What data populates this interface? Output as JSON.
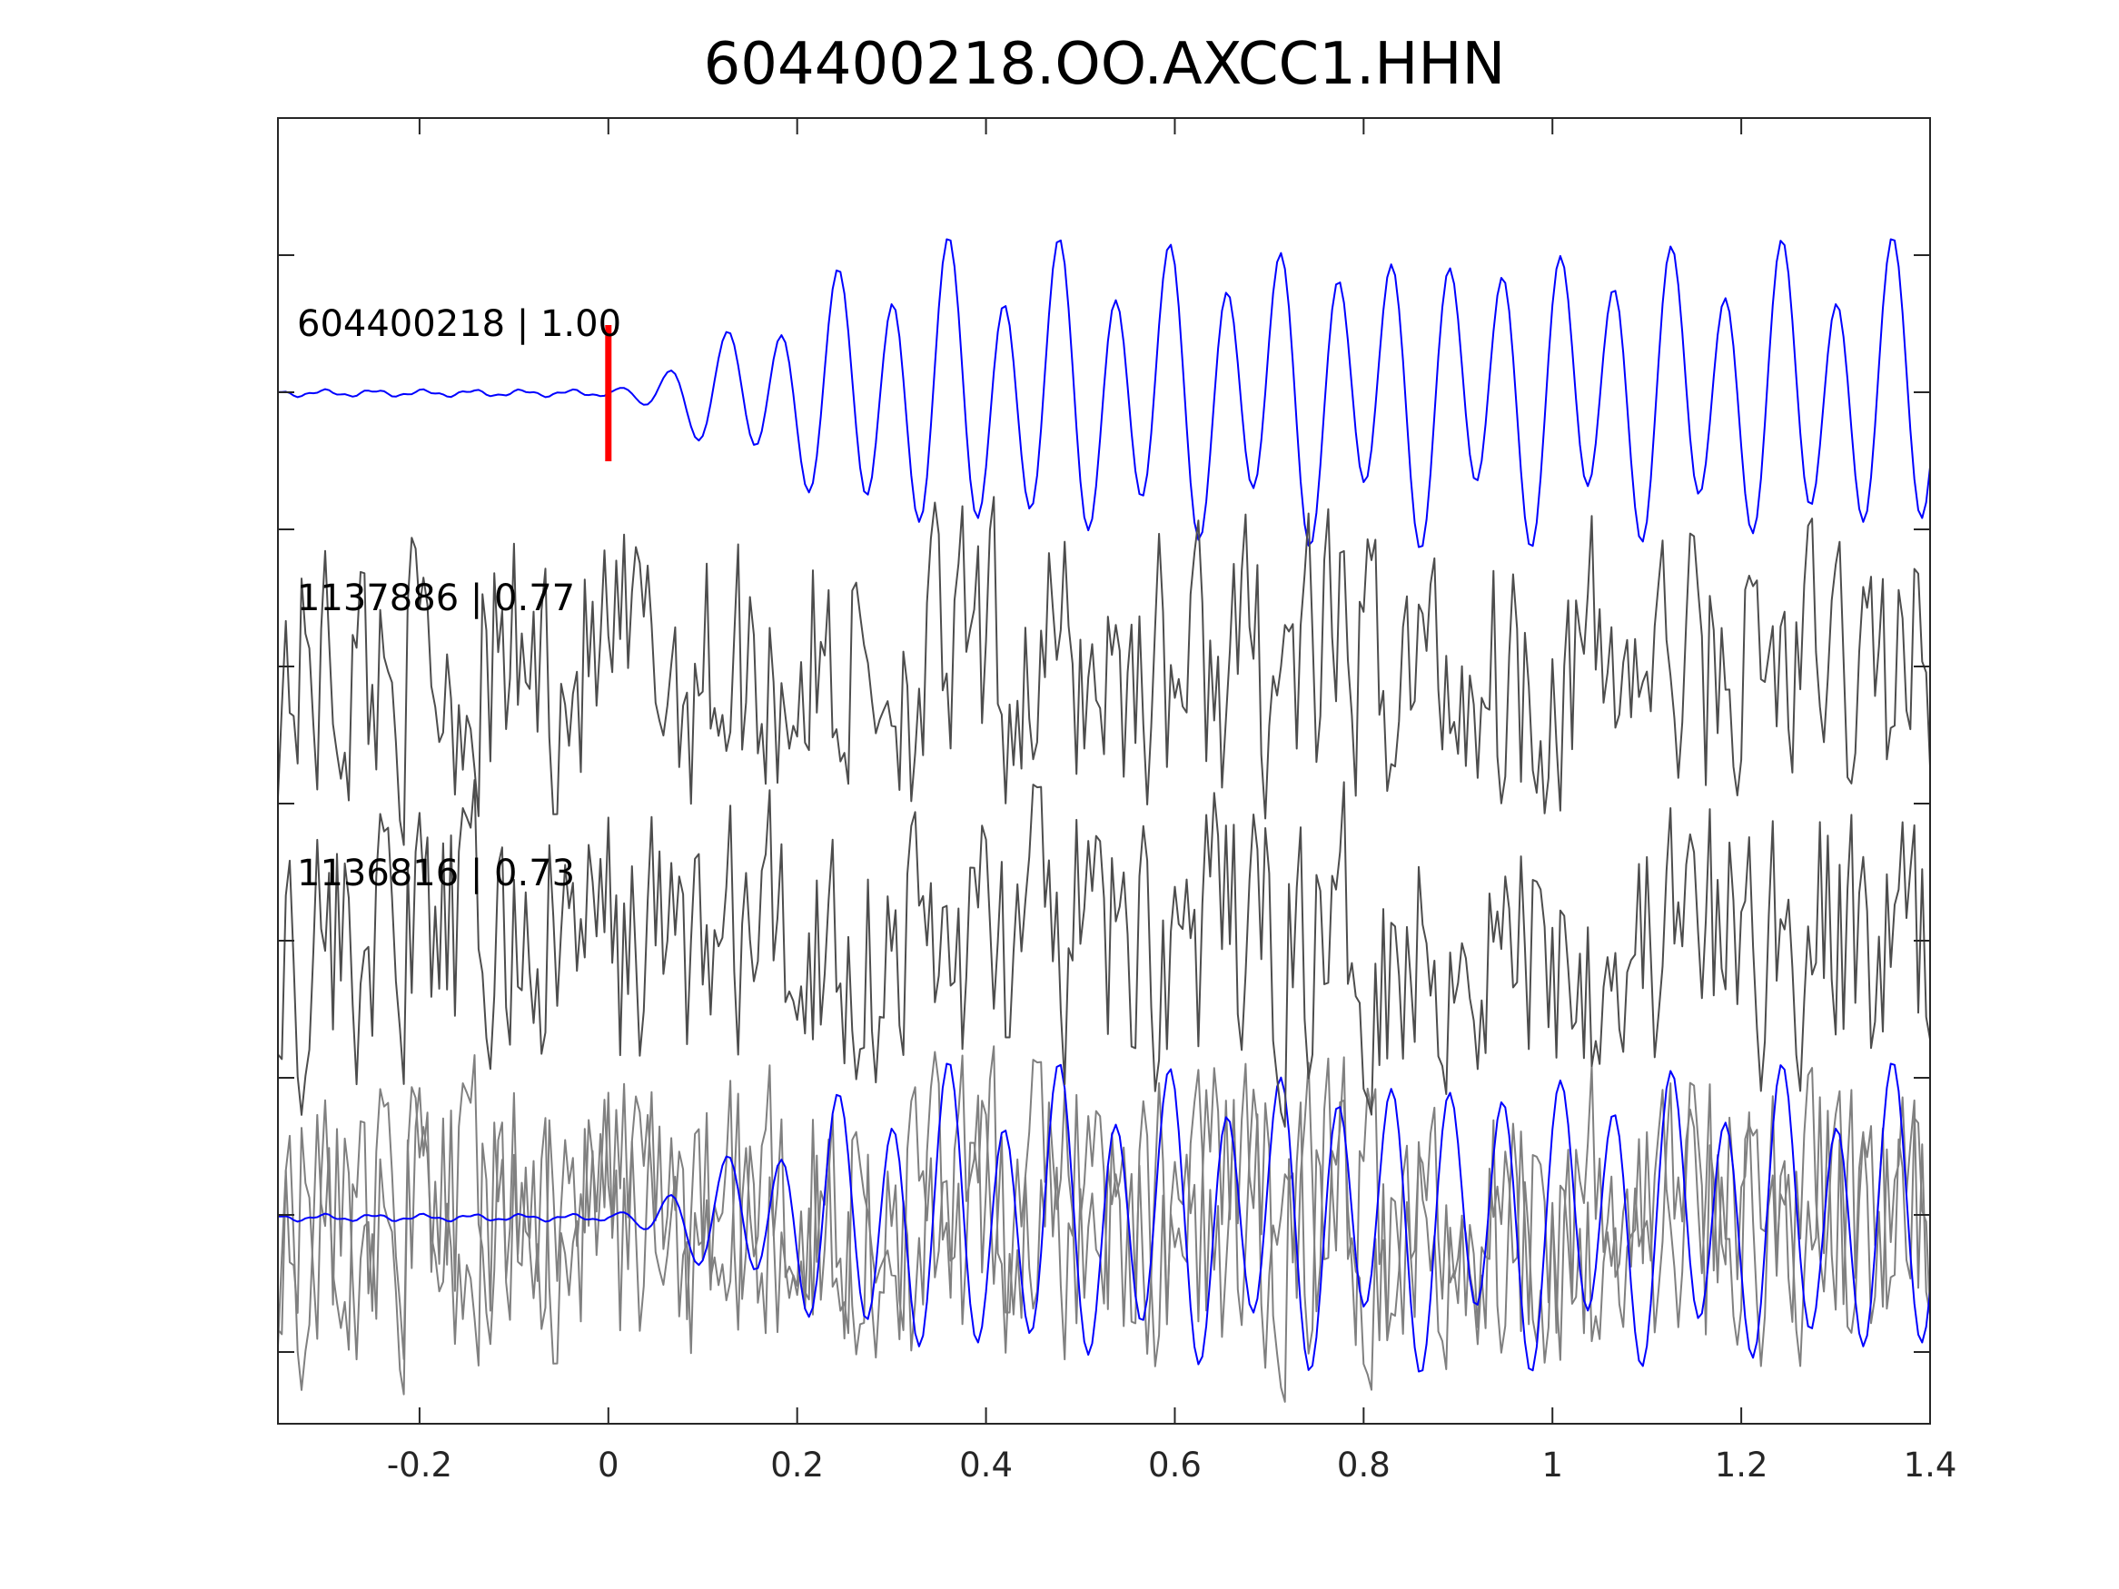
{
  "chart_data": {
    "type": "line",
    "title": "604400218.OO.AXCC1.HHN",
    "xlabel": "",
    "ylabel": "",
    "xlim": [
      -0.35,
      1.4
    ],
    "x_ticks": [
      -0.2,
      0,
      0.2,
      0.4,
      0.6,
      0.8,
      1,
      1.2,
      1.4
    ],
    "x_tick_labels": [
      "-0.2",
      "0",
      "0.2",
      "0.4",
      "0.6",
      "0.8",
      "1",
      "1.2",
      "1.4"
    ],
    "y_ticks_count": 9,
    "grid": false,
    "pick_marker": {
      "x": 0,
      "color": "#ff0000"
    },
    "colors": {
      "template": "#0000ff",
      "trace": "#4d4d4d",
      "overlay": "#808080",
      "axes": "#262626"
    },
    "series": [
      {
        "name": "604400218 | 1.00",
        "role": "template"
      },
      {
        "name": "1137886 | 0.77",
        "role": "detection"
      },
      {
        "name": "1136816 | 0.73",
        "role": "detection"
      }
    ],
    "stack_panel": "overlay of all traces"
  }
}
